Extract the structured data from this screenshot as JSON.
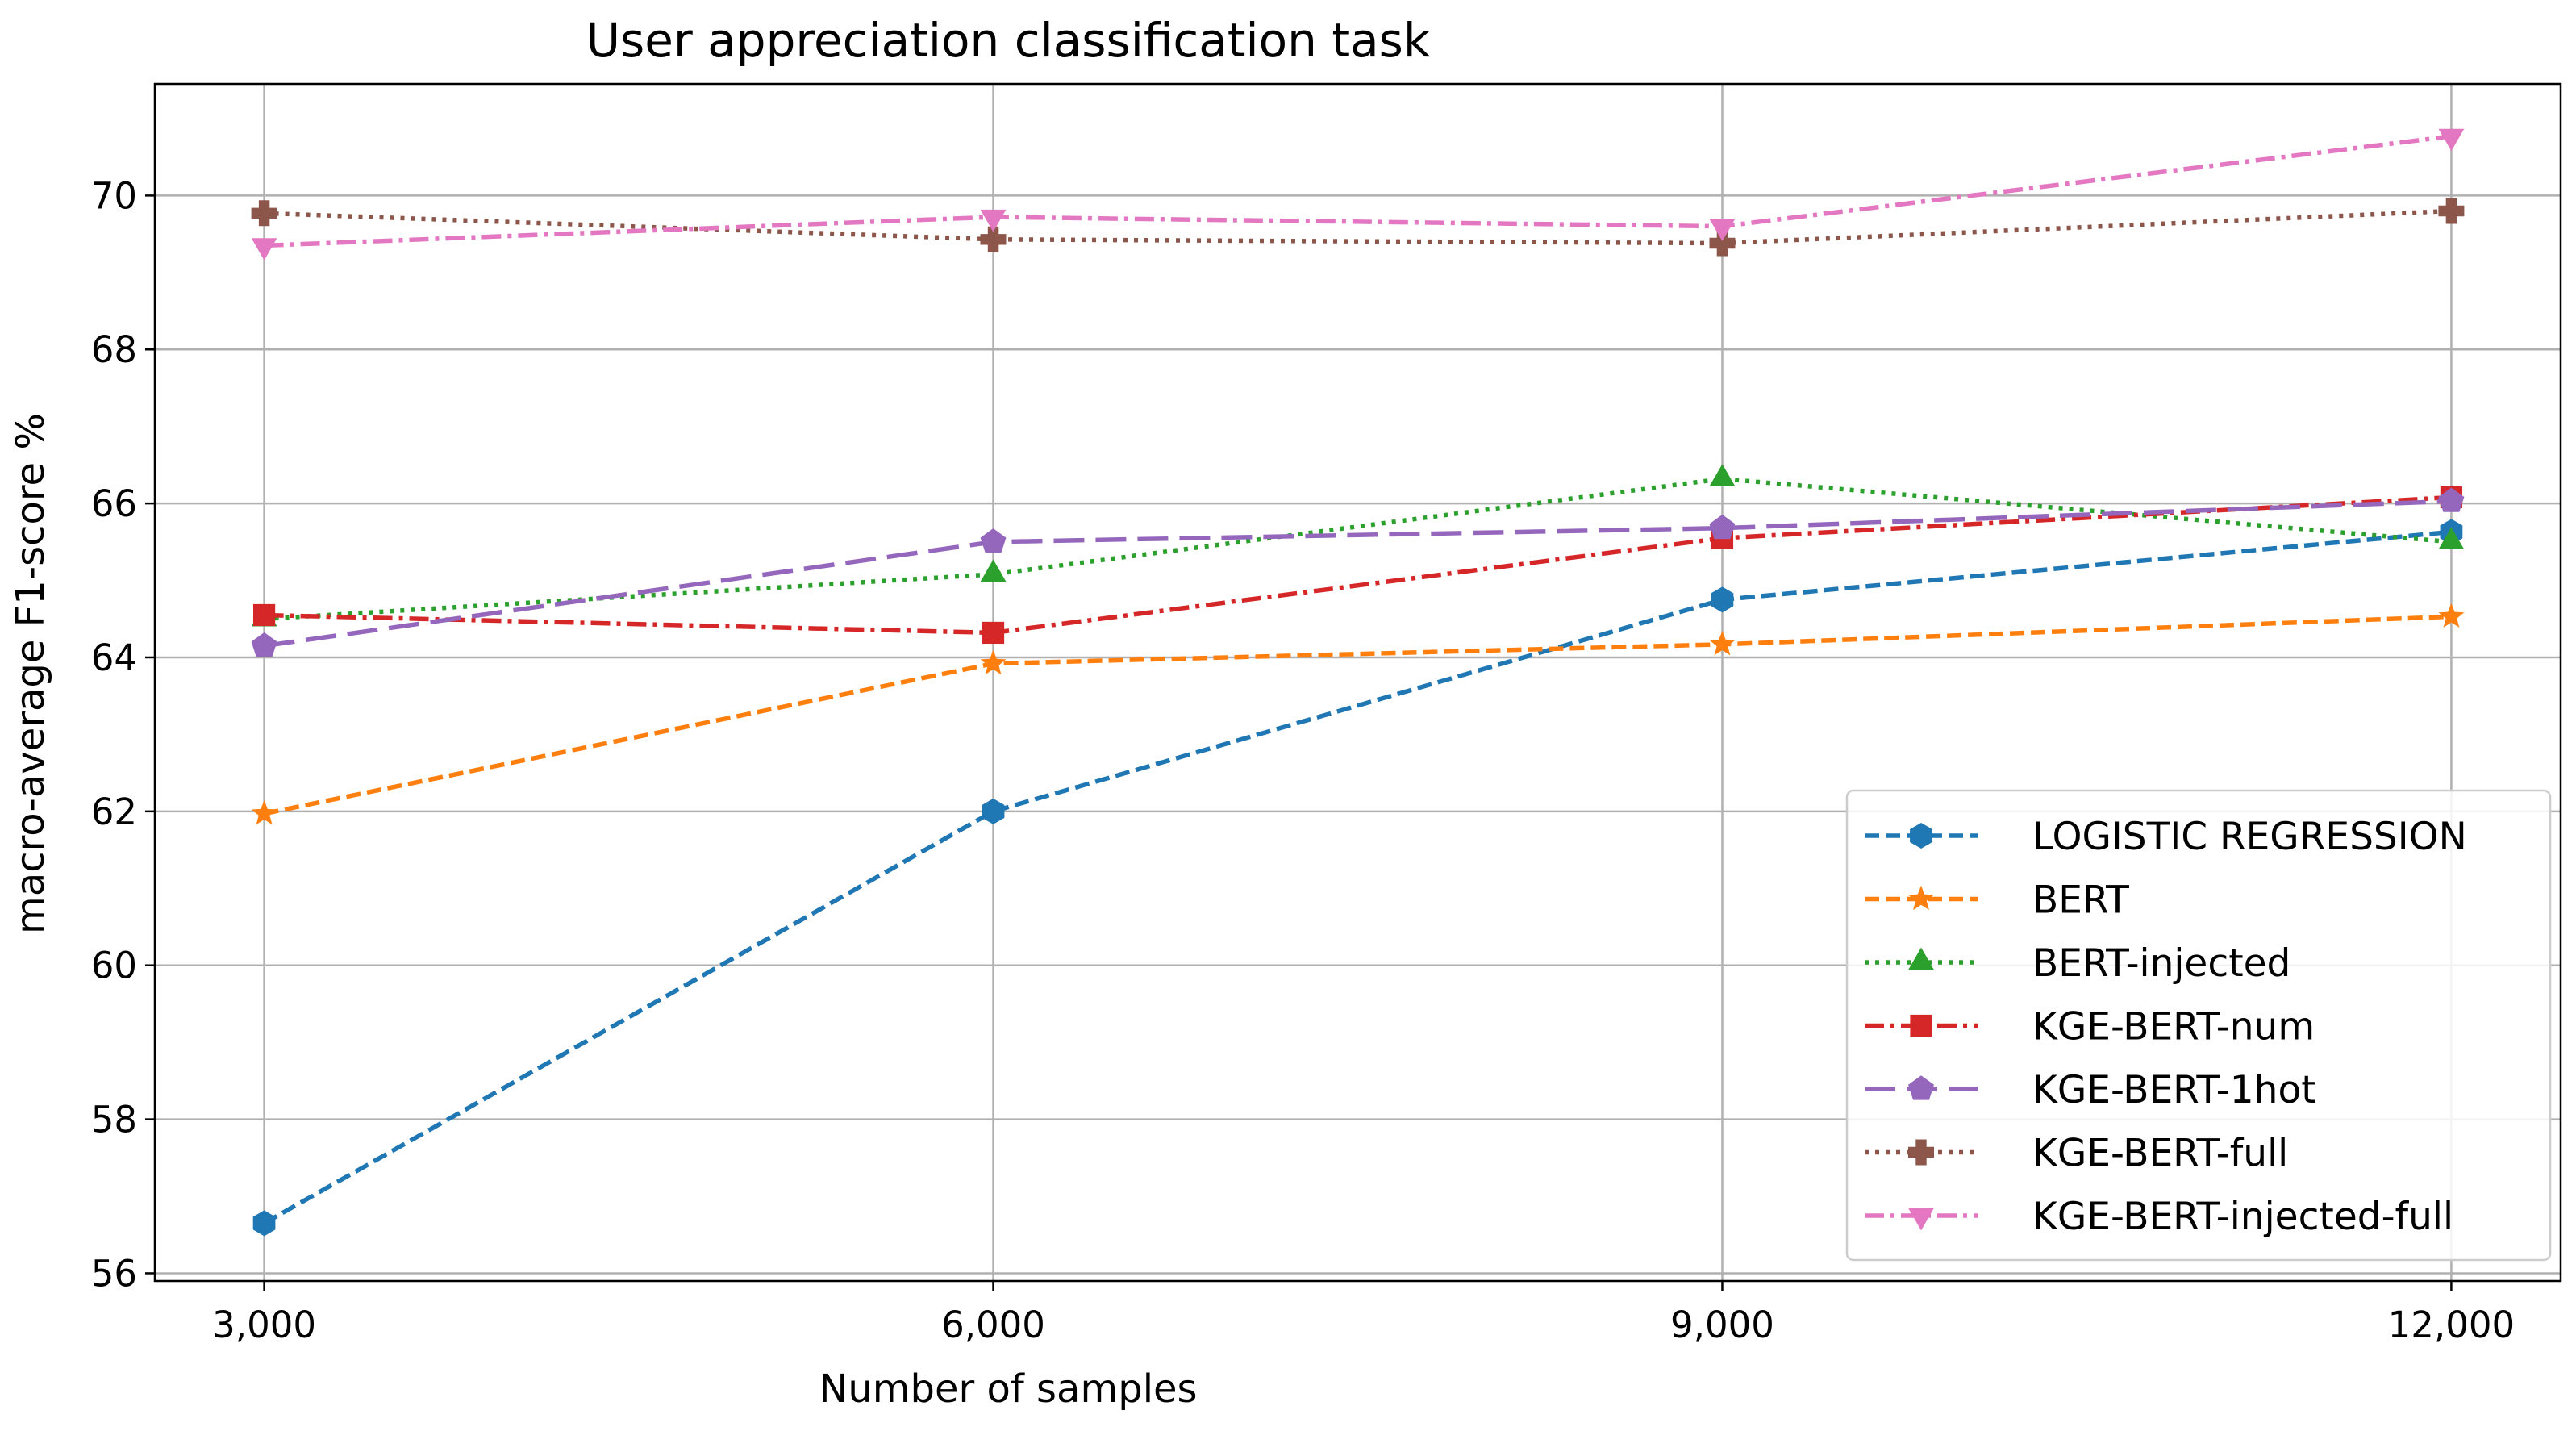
{
  "chart_data": {
    "type": "line",
    "title": "User appreciation classification task",
    "xlabel": "Number of samples",
    "ylabel": "macro-average F1-score %",
    "x": [
      3000,
      6000,
      9000,
      12000
    ],
    "x_tick_labels": [
      "3,000",
      "6,000",
      "9,000",
      "12,000"
    ],
    "xlim": [
      2550,
      12450
    ],
    "y_ticks": [
      56,
      58,
      60,
      62,
      64,
      66,
      68,
      70
    ],
    "y_tick_labels": [
      "56",
      "58",
      "60",
      "62",
      "64",
      "66",
      "68",
      "70"
    ],
    "ylim": [
      55.9,
      71.45
    ],
    "grid": true,
    "legend_position": "lower-right",
    "series": [
      {
        "name": "LOGISTIC REGRESSION",
        "values": [
          56.65,
          62.0,
          64.75,
          65.63
        ],
        "color": "#1f77b4",
        "marker": "hexagon",
        "dash": "dashed"
      },
      {
        "name": "BERT",
        "values": [
          61.97,
          63.92,
          64.17,
          64.53
        ],
        "color": "#ff7f0e",
        "marker": "star",
        "dash": "dashed"
      },
      {
        "name": "BERT-injected",
        "values": [
          64.5,
          65.08,
          66.32,
          65.5
        ],
        "color": "#2ca02c",
        "marker": "triangle-up",
        "dash": "dotted"
      },
      {
        "name": "KGE-BERT-num",
        "values": [
          64.55,
          64.32,
          65.55,
          66.08
        ],
        "color": "#d62728",
        "marker": "square",
        "dash": "dashdot"
      },
      {
        "name": "KGE-BERT-1hot",
        "values": [
          64.15,
          65.5,
          65.68,
          66.03
        ],
        "color": "#9467bd",
        "marker": "pentagon",
        "dash": "longdash"
      },
      {
        "name": "KGE-BERT-full",
        "values": [
          69.77,
          69.43,
          69.38,
          69.8
        ],
        "color": "#8c564b",
        "marker": "plus",
        "dash": "dotted"
      },
      {
        "name": "KGE-BERT-injected-full",
        "values": [
          69.35,
          69.72,
          69.6,
          70.77
        ],
        "color": "#e377c2",
        "marker": "triangle-down",
        "dash": "dashdot"
      }
    ]
  }
}
